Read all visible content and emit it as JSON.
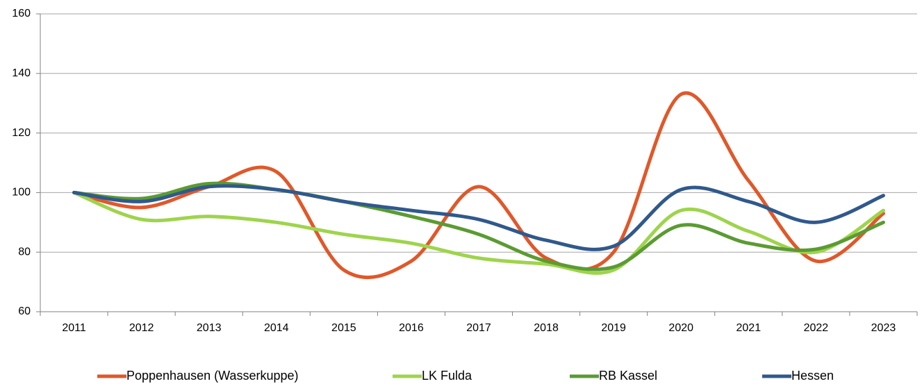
{
  "chart_data": {
    "type": "line",
    "categories": [
      "2011",
      "2012",
      "2013",
      "2014",
      "2015",
      "2016",
      "2017",
      "2018",
      "2019",
      "2020",
      "2021",
      "2022",
      "2023"
    ],
    "series": [
      {
        "name": "Poppenhausen (Wasserkuppe)",
        "color": "#e0582a",
        "values": [
          100,
          95,
          102,
          107,
          74,
          77,
          102,
          78,
          80,
          133,
          104,
          77,
          93
        ]
      },
      {
        "name": "LK Fulda",
        "color": "#9ed44c",
        "values": [
          100,
          91,
          92,
          90,
          86,
          83,
          78,
          76,
          74,
          94,
          87,
          80,
          94
        ]
      },
      {
        "name": "RB Kassel",
        "color": "#5b9b33",
        "values": [
          100,
          98,
          103,
          101,
          97,
          92,
          86,
          77,
          75,
          89,
          83,
          81,
          90
        ]
      },
      {
        "name": "Hessen",
        "color": "#30598c",
        "values": [
          100,
          97,
          102,
          101,
          97,
          94,
          91,
          84,
          82,
          101,
          97,
          90,
          99
        ]
      }
    ],
    "ylim": [
      60,
      160
    ],
    "yticks": [
      60,
      80,
      100,
      120,
      140,
      160
    ],
    "grid": true
  }
}
